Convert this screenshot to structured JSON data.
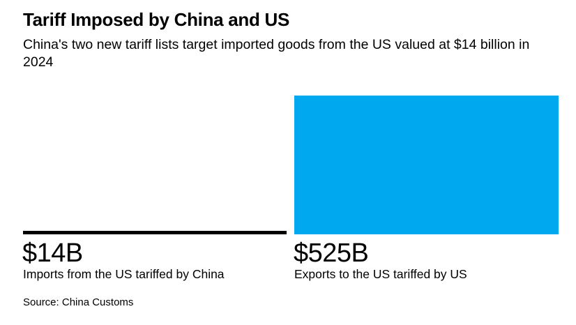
{
  "title": "Tariff Imposed by China and US",
  "subtitle": "China's two new tariff lists target imported goods from the US valued at $14 billion in 2024",
  "source": "Source: China Customs",
  "chart_data": {
    "type": "bar",
    "title": "Tariff Imposed by China and US",
    "subtitle": "China's two new tariff lists target imported goods from the US valued at $14 billion in 2024",
    "categories": [
      "Imports from the US tariffed by China",
      "Exports to the US tariffed by US"
    ],
    "values": [
      14,
      525
    ],
    "value_labels": [
      "$14B",
      "$525B"
    ],
    "unit": "billion USD",
    "colors": [
      "#000000",
      "#00a8f0"
    ],
    "ylim": [
      0,
      525
    ],
    "grid": false,
    "legend": "none"
  }
}
